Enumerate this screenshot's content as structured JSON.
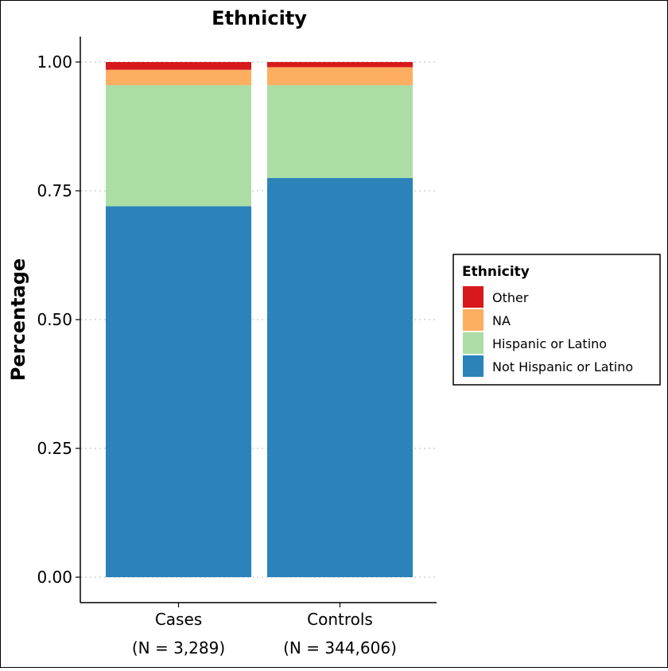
{
  "chart_data": {
    "type": "bar",
    "stacked": true,
    "title": "Ethnicity",
    "xlabel": "",
    "ylabel": "Percentage",
    "ylim": [
      0,
      1
    ],
    "yticks": [
      "0.00",
      "0.25",
      "0.50",
      "0.75",
      "1.00"
    ],
    "grid": "horizontal dotted",
    "categories": [
      {
        "name": "Cases",
        "n_label": "(N = 3,289)"
      },
      {
        "name": "Controls",
        "n_label": "(N = 344,606)"
      }
    ],
    "series": [
      {
        "name": "Not Hispanic or Latino",
        "color": "#2b83ba",
        "values": [
          0.72,
          0.775
        ]
      },
      {
        "name": "Hispanic or Latino",
        "color": "#abdda4",
        "values": [
          0.235,
          0.18
        ]
      },
      {
        "name": "NA",
        "color": "#fdae61",
        "values": [
          0.03,
          0.035
        ]
      },
      {
        "name": "Other",
        "color": "#d7191c",
        "values": [
          0.015,
          0.01
        ]
      }
    ],
    "legend": {
      "title": "Ethnicity",
      "position": "right",
      "order": [
        "Other",
        "NA",
        "Hispanic or Latino",
        "Not Hispanic or Latino"
      ]
    }
  }
}
